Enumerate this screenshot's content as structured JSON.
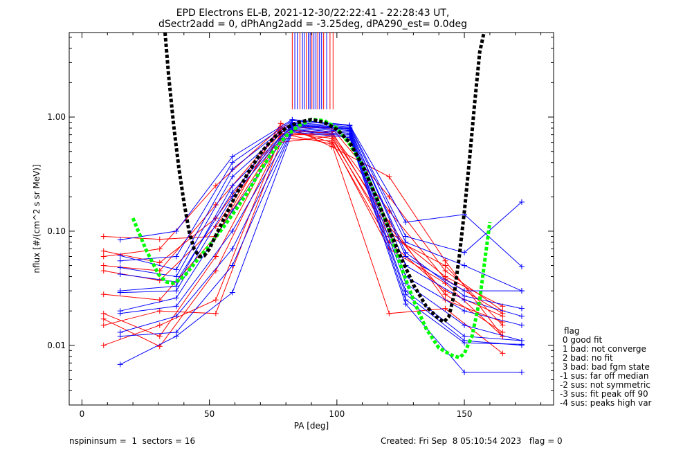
{
  "titles": {
    "line1": "EPD Electrons EL-B, 2021-12-30/22:22:41 - 22:28:43 UT,",
    "line2": "dSectr2add = 0, dPhAng2add = -3.25deg, dPA290_est=   0.0deg"
  },
  "footer": {
    "left": "nspininsum =  1  sectors = 16",
    "right": "Created: Fri Sep  8 05:10:54 2023   flag = 0"
  },
  "legend": {
    "title": "flag",
    "items": [
      " 0 good fit",
      " 1 bad: not converge",
      " 2 bad: no fit",
      " 3 bad: bad fgm state",
      "-1 sus: far off median",
      "-2 sus: not symmetric",
      "-3 sus: fit peak off 90",
      "-4 sus: peaks high var"
    ]
  },
  "chart_data": {
    "type": "line",
    "xlabel": "PA [deg]",
    "ylabel": "nflux [#/(cm^2 s sr MeV)]",
    "xlim": [
      -5,
      185
    ],
    "ylim": [
      0.003,
      5.5
    ],
    "yscale": "log",
    "xticks": [
      "0",
      "50",
      "100",
      "150"
    ],
    "yticks": [
      "0.01",
      "0.10",
      "1.00"
    ],
    "colors": {
      "red": "#ff0000",
      "blue": "#0000ff",
      "fit_black": "#000000",
      "fit_green": "#00ff00"
    },
    "pa_sectors": [
      8.5,
      15,
      30.5,
      37,
      52.5,
      59,
      78,
      82.5,
      93,
      98,
      105,
      120.5,
      127,
      142.5,
      150,
      165,
      172.5
    ],
    "red_series": [
      {
        "x": [
          8.5,
          30.5,
          52.5,
          78,
          98,
          120.5,
          142.5,
          165
        ],
        "y": [
          0.09,
          0.085,
          0.09,
          0.88,
          0.55,
          0.3,
          0.055,
          0.012
        ]
      },
      {
        "x": [
          8.5,
          30.5,
          52.5,
          78,
          98,
          120.5,
          142.5,
          165
        ],
        "y": [
          0.067,
          0.053,
          0.13,
          0.8,
          0.6,
          0.08,
          0.03,
          0.018
        ]
      },
      {
        "x": [
          8.5,
          30.5,
          52.5,
          78,
          98,
          120.5,
          142.5,
          165
        ],
        "y": [
          0.045,
          0.037,
          0.11,
          0.75,
          0.65,
          0.1,
          0.04,
          0.022
        ]
      },
      {
        "x": [
          8.5,
          30.5,
          52.5,
          78,
          98,
          120.5,
          142.5,
          165
        ],
        "y": [
          0.028,
          0.025,
          0.09,
          0.7,
          0.7,
          0.12,
          0.025,
          0.016
        ]
      },
      {
        "x": [
          8.5,
          30.5,
          52.5,
          78,
          98,
          120.5,
          142.5,
          165
        ],
        "y": [
          0.019,
          0.012,
          0.06,
          0.72,
          0.58,
          0.019,
          0.021,
          0.0085
        ]
      },
      {
        "x": [
          8.5,
          30.5,
          52.5,
          78,
          98,
          120.5,
          142.5,
          165
        ],
        "y": [
          0.017,
          0.0098,
          0.045,
          0.65,
          0.62,
          0.07,
          0.035,
          0.012
        ]
      },
      {
        "x": [
          8.5,
          30.5,
          52.5,
          78,
          98,
          120.5,
          142.5,
          165
        ],
        "y": [
          0.015,
          0.02,
          0.019,
          0.6,
          0.68,
          0.09,
          0.05,
          0.015
        ]
      },
      {
        "x": [
          8.5,
          30.5,
          52.5,
          78,
          98,
          120.5,
          142.5,
          165
        ],
        "y": [
          0.01,
          0.015,
          0.025,
          0.68,
          0.75,
          0.11,
          0.028,
          0.013
        ]
      },
      {
        "x": [
          8.5,
          30.5,
          52.5,
          78,
          98,
          120.5,
          142.5,
          165
        ],
        "y": [
          0.06,
          0.07,
          0.25,
          0.82,
          0.8,
          0.2,
          0.045,
          0.02
        ]
      },
      {
        "x": [
          8.5,
          30.5,
          52.5,
          78,
          98,
          120.5,
          142.5,
          165
        ],
        "y": [
          0.05,
          0.045,
          0.17,
          0.78,
          0.72,
          0.15,
          0.038,
          0.019
        ]
      }
    ],
    "blue_series": [
      {
        "x": [
          15,
          37,
          59,
          82.5,
          105,
          127,
          150,
          172.5
        ],
        "y": [
          0.084,
          0.1,
          0.45,
          0.95,
          0.85,
          0.12,
          0.14,
          0.049
        ]
      },
      {
        "x": [
          15,
          37,
          59,
          82.5,
          105,
          127,
          150,
          172.5
        ],
        "y": [
          0.061,
          0.046,
          0.35,
          0.9,
          0.82,
          0.08,
          0.05,
          0.03
        ]
      },
      {
        "x": [
          15,
          37,
          59,
          82.5,
          105,
          127,
          150,
          172.5
        ],
        "y": [
          0.048,
          0.04,
          0.3,
          0.88,
          0.8,
          0.06,
          0.03,
          0.03
        ]
      },
      {
        "x": [
          15,
          37,
          59,
          82.5,
          105,
          127,
          150,
          172.5
        ],
        "y": [
          0.03,
          0.033,
          0.25,
          0.85,
          0.78,
          0.05,
          0.025,
          0.018
        ]
      },
      {
        "x": [
          15,
          37,
          59,
          82.5,
          105,
          127,
          150,
          172.5
        ],
        "y": [
          0.029,
          0.03,
          0.2,
          0.84,
          0.76,
          0.04,
          0.02,
          0.015
        ]
      },
      {
        "x": [
          15,
          37,
          59,
          82.5,
          105,
          127,
          150,
          172.5
        ],
        "y": [
          0.02,
          0.026,
          0.15,
          0.82,
          0.74,
          0.035,
          0.015,
          0.011
        ]
      },
      {
        "x": [
          15,
          37,
          59,
          82.5,
          105,
          127,
          150,
          172.5
        ],
        "y": [
          0.019,
          0.022,
          0.1,
          0.8,
          0.72,
          0.03,
          0.012,
          0.011
        ]
      },
      {
        "x": [
          15,
          37,
          59,
          82.5,
          105,
          127,
          150,
          172.5
        ],
        "y": [
          0.013,
          0.018,
          0.07,
          0.78,
          0.7,
          0.028,
          0.011,
          0.01
        ]
      },
      {
        "x": [
          15,
          37,
          59,
          82.5,
          105,
          127,
          150,
          172.5
        ],
        "y": [
          0.012,
          0.013,
          0.05,
          0.76,
          0.68,
          0.025,
          0.0105,
          0.0102
        ]
      },
      {
        "x": [
          15,
          37,
          59,
          82.5,
          105,
          127,
          150,
          172.5
        ],
        "y": [
          0.0068,
          0.012,
          0.029,
          0.74,
          0.66,
          0.023,
          0.0058,
          0.0058
        ]
      },
      {
        "x": [
          15,
          37,
          59,
          82.5,
          105,
          127,
          150,
          172.5
        ],
        "y": [
          0.055,
          0.06,
          0.4,
          0.93,
          0.84,
          0.09,
          0.065,
          0.18
        ]
      },
      {
        "x": [
          15,
          37,
          59,
          82.5,
          105,
          127,
          150,
          172.5
        ],
        "y": [
          0.042,
          0.036,
          0.22,
          0.86,
          0.79,
          0.065,
          0.027,
          0.021
        ]
      }
    ],
    "fit_black": {
      "x": [
        32.6,
        34,
        36,
        38,
        40,
        42,
        44,
        46,
        48,
        50,
        55,
        60,
        65,
        70,
        75,
        80,
        85,
        90,
        95,
        100,
        105,
        110,
        115,
        120,
        125,
        130,
        135,
        140,
        142,
        144,
        146,
        148,
        150,
        152,
        154,
        156,
        157.7
      ],
      "y": [
        5.5,
        2.3,
        0.83,
        0.36,
        0.18,
        0.1,
        0.07,
        0.06,
        0.061,
        0.07,
        0.12,
        0.2,
        0.32,
        0.48,
        0.65,
        0.8,
        0.9,
        0.95,
        0.9,
        0.78,
        0.6,
        0.38,
        0.21,
        0.11,
        0.06,
        0.034,
        0.022,
        0.017,
        0.016,
        0.018,
        0.028,
        0.06,
        0.15,
        0.42,
        1.3,
        3.7,
        5.5
      ]
    },
    "fit_green": {
      "x": [
        20,
        25,
        30,
        33,
        36,
        40,
        45,
        50,
        55,
        60,
        65,
        70,
        75,
        80,
        85,
        90,
        95,
        100,
        105,
        110,
        115,
        120,
        125,
        130,
        135,
        140,
        145,
        148,
        150,
        153,
        156,
        158,
        160
      ],
      "y": [
        0.13,
        0.07,
        0.042,
        0.036,
        0.035,
        0.04,
        0.055,
        0.075,
        0.105,
        0.15,
        0.22,
        0.34,
        0.5,
        0.68,
        0.84,
        0.95,
        0.93,
        0.8,
        0.58,
        0.38,
        0.21,
        0.11,
        0.05,
        0.025,
        0.014,
        0.0095,
        0.0082,
        0.0078,
        0.0085,
        0.012,
        0.025,
        0.055,
        0.12
      ]
    },
    "top_bars": [
      {
        "x": 82.5,
        "color": "#ff0000"
      },
      {
        "x": 83.5,
        "color": "#0000ff"
      },
      {
        "x": 84.5,
        "color": "#0000ff"
      },
      {
        "x": 85.5,
        "color": "#ff0000"
      },
      {
        "x": 86.5,
        "color": "#0000ff"
      },
      {
        "x": 87.2,
        "color": "#0000ff"
      },
      {
        "x": 88,
        "color": "#ff0000"
      },
      {
        "x": 88.8,
        "color": "#0000ff"
      },
      {
        "x": 89.5,
        "color": "#0000ff"
      },
      {
        "x": 90.2,
        "color": "#ff0000"
      },
      {
        "x": 91,
        "color": "#0000ff"
      },
      {
        "x": 91.8,
        "color": "#0000ff"
      },
      {
        "x": 92.5,
        "color": "#ff0000"
      },
      {
        "x": 93.2,
        "color": "#0000ff"
      },
      {
        "x": 94,
        "color": "#0000ff"
      },
      {
        "x": 94.8,
        "color": "#ff0000"
      },
      {
        "x": 96,
        "color": "#0000ff"
      },
      {
        "x": 97.3,
        "color": "#ff0000"
      },
      {
        "x": 98.5,
        "color": "#ff0000"
      }
    ]
  }
}
